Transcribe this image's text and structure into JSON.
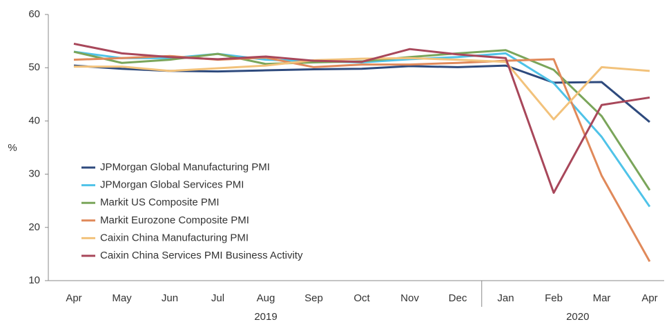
{
  "chart_data": {
    "type": "line",
    "y_label": "%",
    "categories": [
      "Apr",
      "May",
      "Jun",
      "Jul",
      "Aug",
      "Sep",
      "Oct",
      "Nov",
      "Dec",
      "Jan",
      "Feb",
      "Mar",
      "Apr"
    ],
    "x_groups": [
      {
        "label": "2019",
        "span": 9
      },
      {
        "label": "2020",
        "span": 4
      }
    ],
    "ylim": [
      10,
      60
    ],
    "yticks": [
      10,
      20,
      30,
      40,
      50,
      60
    ],
    "grid": false,
    "legend": "left",
    "series": [
      {
        "name": "JPMorgan Global Manufacturing PMI",
        "color": "#2e4a7d",
        "values": [
          50.4,
          49.8,
          49.4,
          49.3,
          49.5,
          49.7,
          49.8,
          50.3,
          50.1,
          50.4,
          47.2,
          47.3,
          39.8
        ]
      },
      {
        "name": "JPMorgan Global Services PMI",
        "color": "#4fc3e8",
        "values": [
          53.0,
          51.8,
          51.8,
          52.6,
          51.5,
          51.2,
          51.0,
          51.6,
          52.0,
          52.7,
          47.1,
          37.0,
          23.9
        ]
      },
      {
        "name": "Markit US Composite PMI",
        "color": "#7aa55a",
        "values": [
          53.0,
          50.9,
          51.5,
          52.6,
          50.7,
          51.0,
          51.2,
          52.0,
          52.7,
          53.3,
          49.6,
          40.9,
          27.0
        ]
      },
      {
        "name": "Markit Eurozone Composite PMI",
        "color": "#e0895a",
        "values": [
          51.5,
          51.8,
          52.2,
          51.5,
          51.9,
          50.1,
          50.6,
          50.6,
          50.9,
          51.3,
          51.6,
          29.7,
          13.6
        ]
      },
      {
        "name": "Caixin China Manufacturing PMI",
        "color": "#f2c27b",
        "values": [
          50.2,
          50.2,
          49.4,
          49.9,
          50.4,
          51.4,
          51.7,
          51.8,
          51.5,
          51.1,
          40.3,
          50.1,
          49.4
        ]
      },
      {
        "name": "Caixin China Services PMI Business Activity",
        "color": "#a8475a",
        "values": [
          54.5,
          52.7,
          52.0,
          51.6,
          52.1,
          51.3,
          51.1,
          53.5,
          52.5,
          51.8,
          26.5,
          43.0,
          44.4
        ]
      }
    ]
  }
}
